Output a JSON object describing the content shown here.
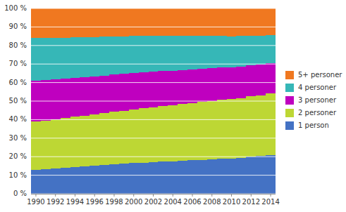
{
  "chart_data": {
    "type": "bar",
    "stacked": true,
    "x": [
      1990,
      1991,
      1992,
      1993,
      1994,
      1995,
      1996,
      1997,
      1998,
      1999,
      2000,
      2001,
      2002,
      2003,
      2004,
      2005,
      2006,
      2007,
      2008,
      2009,
      2010,
      2011,
      2012,
      2013,
      2014
    ],
    "series": [
      {
        "name": "1 person",
        "color": "#4472c4",
        "values": [
          13.0,
          13.3,
          13.6,
          14.0,
          14.4,
          14.8,
          15.2,
          15.5,
          15.9,
          16.2,
          16.5,
          16.8,
          17.0,
          17.3,
          17.5,
          17.8,
          18.0,
          18.3,
          18.5,
          18.8,
          19.0,
          19.5,
          20.0,
          20.5,
          21.0
        ]
      },
      {
        "name": "2 personer",
        "color": "#bdd734",
        "values": [
          26.0,
          26.2,
          26.5,
          26.8,
          27.1,
          27.4,
          27.7,
          28.0,
          28.3,
          28.6,
          29.0,
          29.3,
          29.6,
          29.9,
          30.2,
          30.5,
          30.8,
          31.2,
          31.5,
          31.8,
          32.0,
          32.2,
          32.5,
          32.7,
          33.0
        ]
      },
      {
        "name": "3 personer",
        "color": "#bf00bf",
        "values": [
          22.0,
          21.8,
          21.5,
          21.2,
          21.0,
          20.8,
          20.5,
          20.3,
          20.1,
          19.9,
          19.7,
          19.5,
          19.3,
          19.0,
          18.7,
          18.5,
          18.2,
          18.0,
          17.8,
          17.5,
          17.3,
          17.0,
          16.8,
          16.5,
          16.3
        ]
      },
      {
        "name": "4 personer",
        "color": "#36b7b7",
        "values": [
          23.0,
          22.7,
          22.4,
          22.1,
          21.8,
          21.5,
          21.2,
          20.9,
          20.6,
          20.3,
          20.0,
          19.7,
          19.4,
          19.1,
          18.8,
          18.5,
          18.2,
          17.8,
          17.4,
          17.0,
          16.7,
          16.4,
          16.0,
          15.7,
          15.3
        ]
      },
      {
        "name": "5+ personer",
        "color": "#f07820",
        "values": [
          16.0,
          16.0,
          16.0,
          15.9,
          15.7,
          15.5,
          15.4,
          15.3,
          15.1,
          15.0,
          14.8,
          14.7,
          14.7,
          14.7,
          14.8,
          14.7,
          14.8,
          14.7,
          14.8,
          14.9,
          15.0,
          14.9,
          14.7,
          14.6,
          14.4
        ]
      }
    ],
    "xlim": [
      1989.5,
      2014.5
    ],
    "xticks": [
      1990,
      1992,
      1994,
      1996,
      1998,
      2000,
      2002,
      2004,
      2006,
      2008,
      2010,
      2012,
      2014
    ],
    "ylim": [
      0,
      100
    ],
    "yticks": [
      {
        "value": 0,
        "label": "0 %"
      },
      {
        "value": 10,
        "label": "10 %"
      },
      {
        "value": 20,
        "label": "20 %"
      },
      {
        "value": 30,
        "label": "30 %"
      },
      {
        "value": 40,
        "label": "40 %"
      },
      {
        "value": 50,
        "label": "50 %"
      },
      {
        "value": 60,
        "label": "60 %"
      },
      {
        "value": 70,
        "label": "70 %"
      },
      {
        "value": 80,
        "label": "80 %"
      },
      {
        "value": 90,
        "label": "90 %"
      },
      {
        "value": 100,
        "label": "100 %"
      }
    ],
    "grid": true,
    "legend": "right"
  }
}
